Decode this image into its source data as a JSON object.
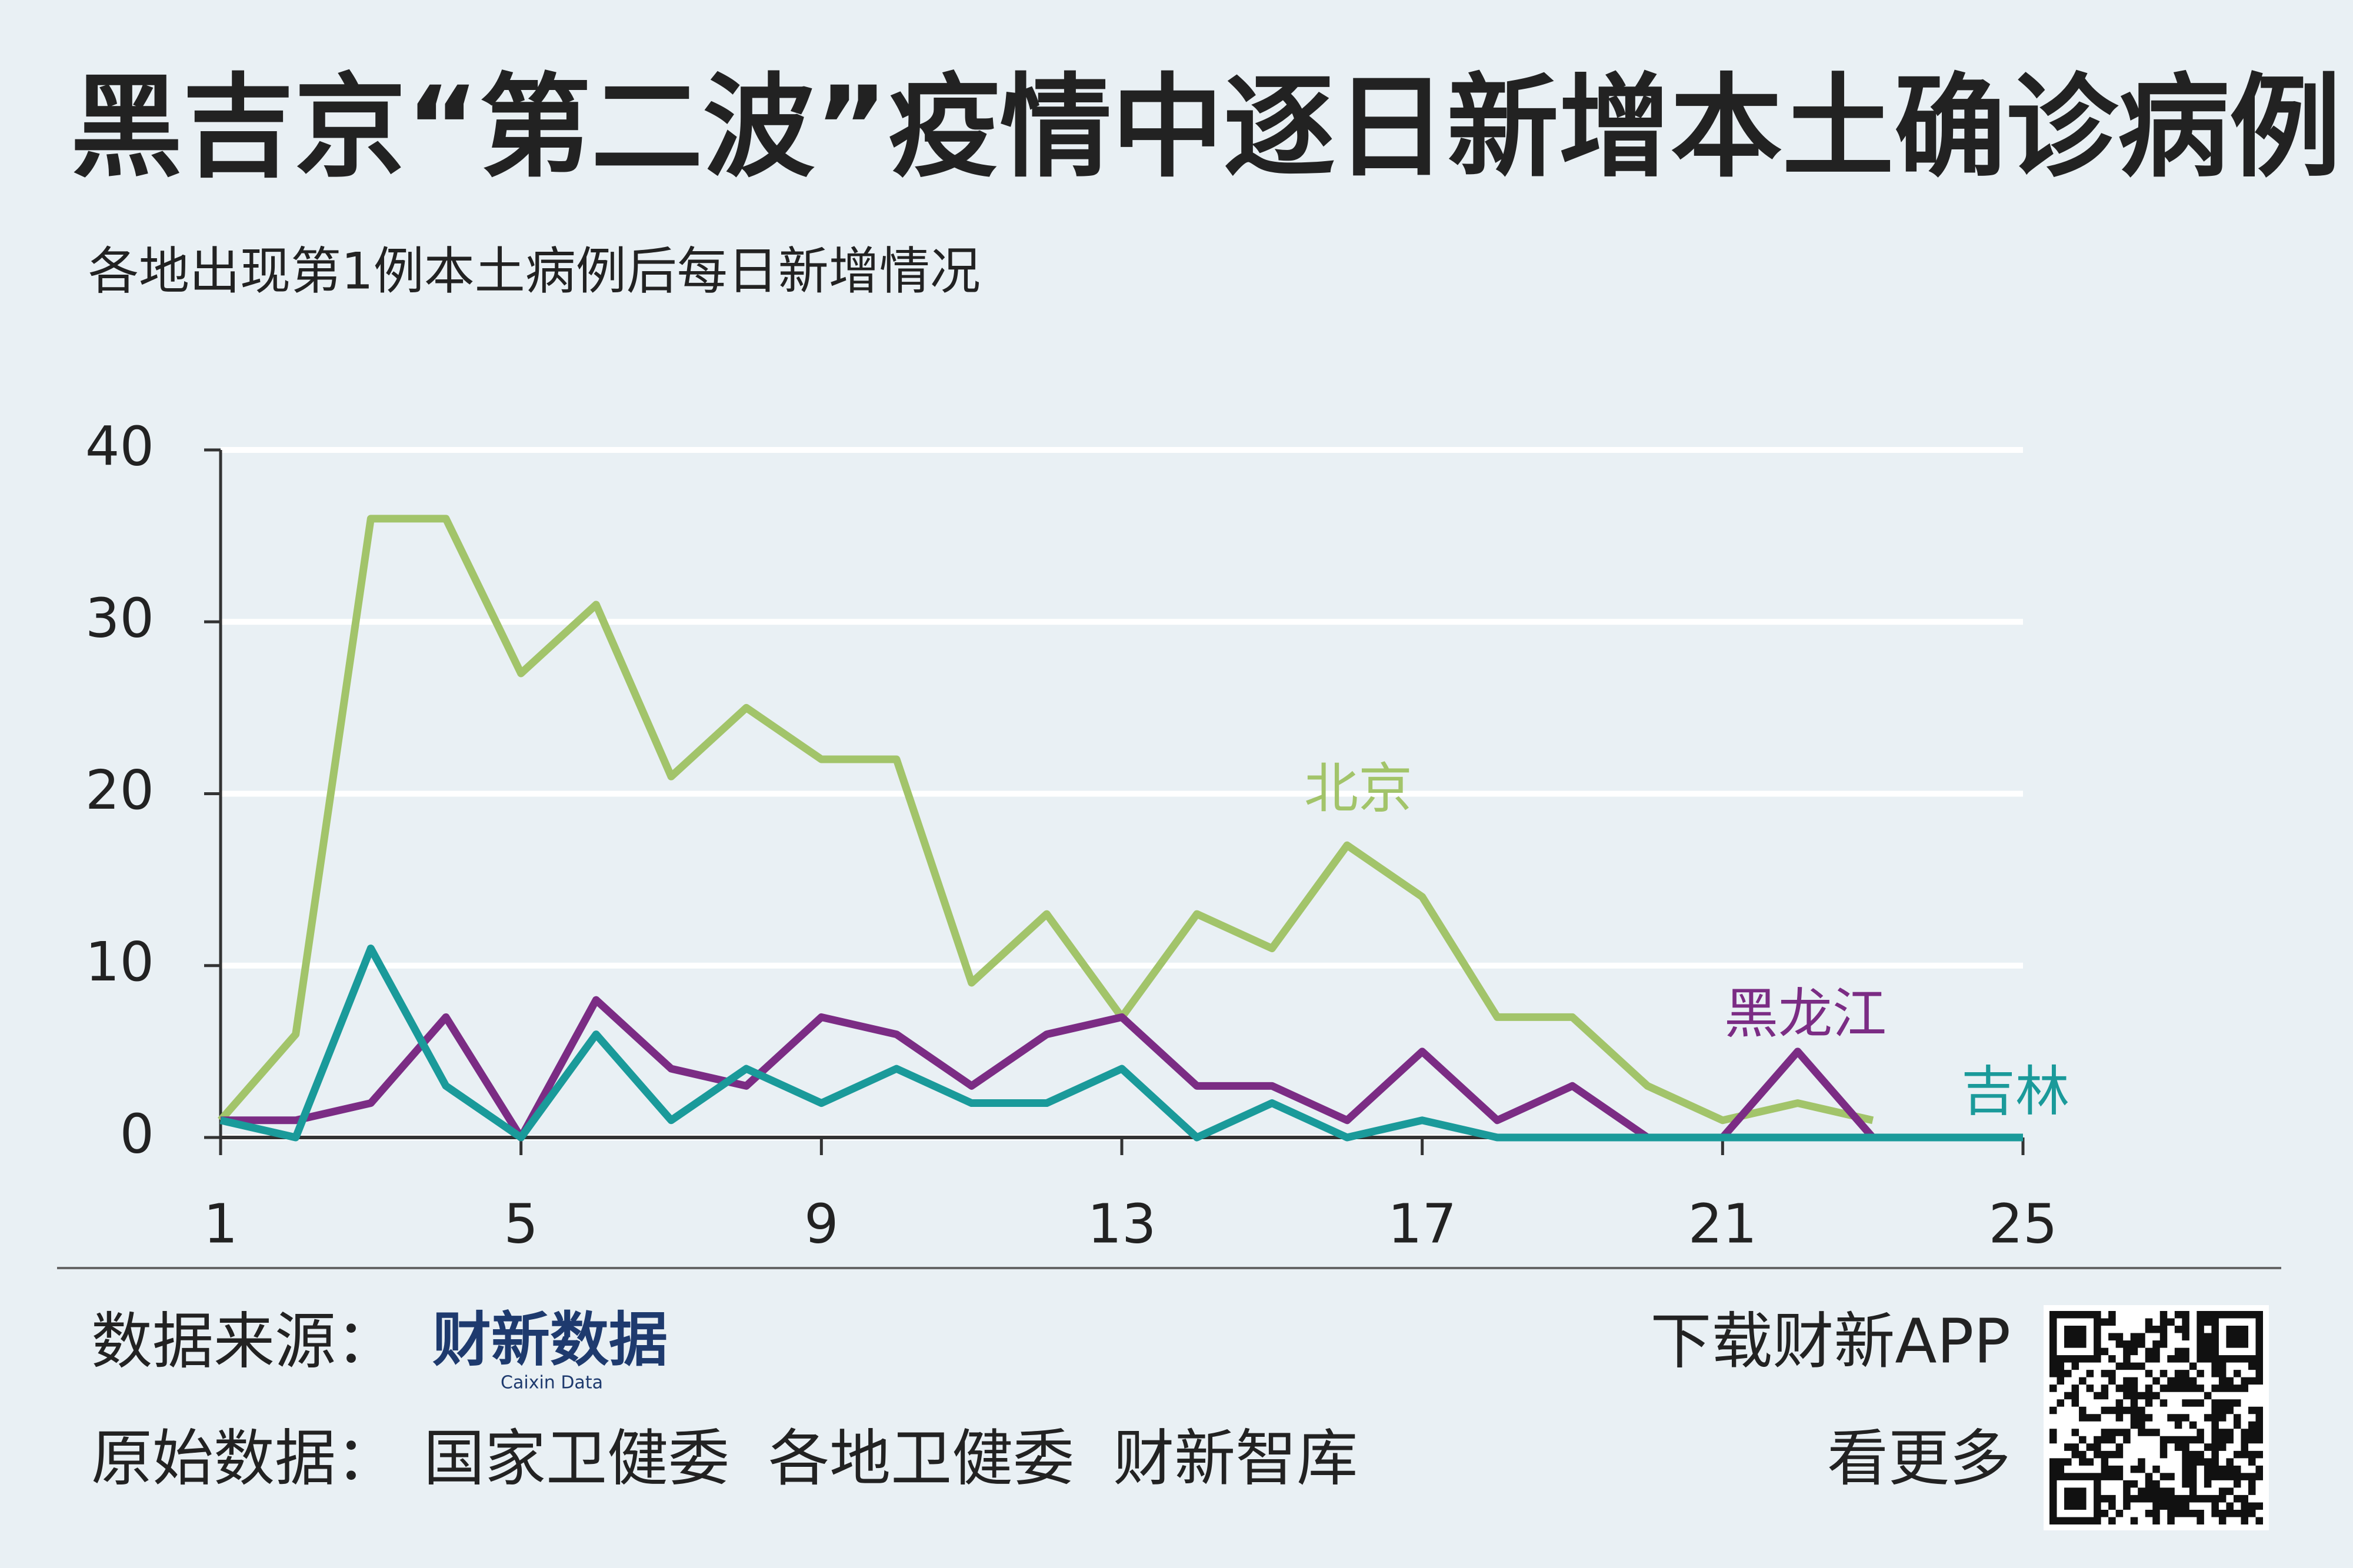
{
  "chart_data": {
    "type": "line",
    "title": "黑吉京“第二波”疫情中逐日新增本土确诊病例",
    "subtitle": "各地出现第1例本土病例后每日新增情况",
    "x": [
      1,
      2,
      3,
      4,
      5,
      6,
      7,
      8,
      9,
      10,
      11,
      12,
      13,
      14,
      15,
      16,
      17,
      18,
      19,
      20,
      21,
      22,
      23,
      24,
      25
    ],
    "series": [
      {
        "name": "北京",
        "color": "#a2c46a",
        "values": [
          1,
          6,
          36,
          36,
          27,
          31,
          21,
          25,
          22,
          22,
          9,
          13,
          7,
          13,
          11,
          17,
          14,
          7,
          7,
          3,
          1,
          2,
          1,
          null,
          null
        ]
      },
      {
        "name": "黑龙江",
        "color": "#7b2c84",
        "values": [
          1,
          1,
          2,
          7,
          0,
          8,
          4,
          3,
          7,
          6,
          3,
          6,
          7,
          3,
          3,
          1,
          5,
          1,
          3,
          0,
          0,
          5,
          0,
          null,
          null
        ]
      },
      {
        "name": "吉林",
        "color": "#1a9a9a",
        "values": [
          1,
          0,
          11,
          3,
          0,
          6,
          1,
          4,
          2,
          4,
          2,
          2,
          4,
          0,
          2,
          0,
          1,
          0,
          0,
          0,
          0,
          0,
          0,
          0,
          0
        ]
      }
    ],
    "xlim": [
      1,
      25
    ],
    "xticks": [
      1,
      5,
      9,
      13,
      17,
      21,
      25
    ],
    "ylim": [
      0,
      40
    ],
    "yticks": [
      0,
      10,
      20,
      30,
      40
    ],
    "grid": true
  },
  "footer": {
    "source_label": "数据来源：",
    "logo": "财新数据",
    "logo_sub": "Caixin Data",
    "original_label": "原始数据：",
    "original_sources": "国家卫健委  各地卫健委  财新智库",
    "app_line1": "下载财新APP",
    "app_line2": "看更多"
  }
}
